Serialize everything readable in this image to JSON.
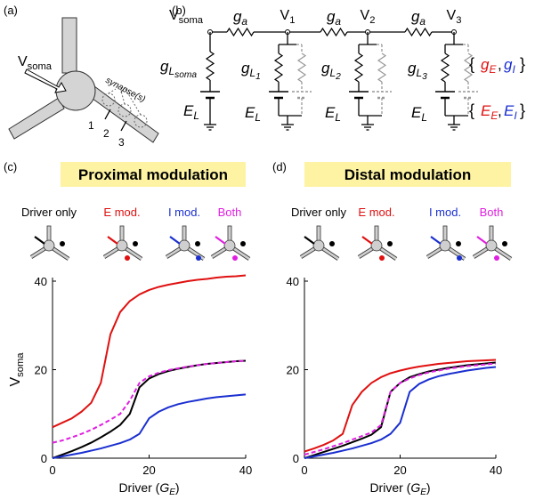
{
  "panel_labels": [
    "(a)",
    "(b)",
    "(c)",
    "(d)"
  ],
  "neuron": {
    "soma_label": {
      "main": "V",
      "sub": "soma"
    },
    "synapse_label": "synapse(s)",
    "compartments": [
      "1",
      "2",
      "3"
    ]
  },
  "circuit": {
    "soma_node": {
      "main": "V",
      "sub": "soma"
    },
    "nodes": [
      {
        "main": "V",
        "sub": "1"
      },
      {
        "main": "V",
        "sub": "2"
      },
      {
        "main": "V",
        "sub": "3"
      }
    ],
    "axial": [
      {
        "main": "g",
        "sub": "a"
      },
      {
        "main": "g",
        "sub": "a"
      },
      {
        "main": "g",
        "sub": "a"
      }
    ],
    "leaks": [
      {
        "main": "g",
        "sub": "L",
        "subsub": "soma"
      },
      {
        "main": "g",
        "sub": "L",
        "subsub": "1"
      },
      {
        "main": "g",
        "sub": "L",
        "subsub": "2"
      },
      {
        "main": "g",
        "sub": "L",
        "subsub": "3"
      }
    ],
    "reversal": [
      {
        "main": "E",
        "sub": "L"
      },
      {
        "main": "E",
        "sub": "L"
      },
      {
        "main": "E",
        "sub": "L"
      },
      {
        "main": "E",
        "sub": "L"
      }
    ],
    "syn_g": {
      "open": "{",
      "items": [
        {
          "main": "g",
          "sub": "E",
          "color": "#e01010"
        },
        {
          "main": "g",
          "sub": "I",
          "color": "#1a2fd0"
        }
      ],
      "sep": ",",
      "close": "}"
    },
    "syn_e": {
      "open": "{",
      "items": [
        {
          "main": "E",
          "sub": "E",
          "color": "#e01010"
        },
        {
          "main": "E",
          "sub": "I",
          "color": "#1a2fd0"
        }
      ],
      "sep": ",",
      "close": "}"
    }
  },
  "chart_data": [
    {
      "type": "line",
      "title": "Proximal modulation",
      "x": [
        0,
        2,
        4,
        6,
        8,
        10,
        12,
        14,
        16,
        18,
        20,
        22,
        24,
        26,
        28,
        30,
        32,
        34,
        36,
        38,
        40
      ],
      "series": [
        {
          "name": "Driver only",
          "color": "#000000",
          "values": [
            0,
            0.8,
            1.6,
            2.5,
            3.5,
            4.7,
            6,
            7.5,
            10,
            16,
            18,
            19,
            19.7,
            20.2,
            20.6,
            21,
            21.3,
            21.5,
            21.7,
            21.9,
            22
          ]
        },
        {
          "name": "E mod.",
          "color": "#e01010",
          "values": [
            7,
            8,
            9,
            10.5,
            12.5,
            17,
            28,
            33,
            35.5,
            37,
            38,
            38.7,
            39.2,
            39.6,
            40,
            40.3,
            40.5,
            40.8,
            41,
            41.1,
            41.3
          ]
        },
        {
          "name": "I mod.",
          "color": "#1a2fd0",
          "values": [
            0,
            0.4,
            0.8,
            1.2,
            1.7,
            2.2,
            2.8,
            3.4,
            4.2,
            5.5,
            9,
            10.5,
            11.5,
            12.2,
            12.7,
            13.1,
            13.5,
            13.8,
            14,
            14.2,
            14.4
          ]
        },
        {
          "name": "Both",
          "color": "#e020e0",
          "dashed": true,
          "values": [
            3.5,
            4,
            4.7,
            5.5,
            6.4,
            7.5,
            8.7,
            10,
            13,
            17,
            18.5,
            19.3,
            19.9,
            20.3,
            20.7,
            21,
            21.3,
            21.5,
            21.7,
            21.9,
            22
          ]
        }
      ],
      "xlabel": {
        "main": "Driver (",
        "sym": "G",
        "sub": "E",
        "end": ")"
      },
      "ylabel": {
        "main": "V",
        "sub": "soma"
      },
      "xlim": [
        0,
        40
      ],
      "ylim": [
        0,
        40
      ],
      "xticks": [
        0,
        20,
        40
      ],
      "yticks": [
        0,
        20,
        40
      ]
    },
    {
      "type": "line",
      "title": "Distal modulation",
      "x": [
        0,
        2,
        4,
        6,
        8,
        10,
        12,
        14,
        16,
        18,
        20,
        22,
        24,
        26,
        28,
        30,
        32,
        34,
        36,
        38,
        40
      ],
      "series": [
        {
          "name": "Driver only",
          "color": "#000000",
          "values": [
            0,
            0.7,
            1.4,
            2.1,
            2.8,
            3.6,
            4.4,
            5.3,
            7,
            15,
            17,
            18.3,
            19,
            19.6,
            20,
            20.4,
            20.7,
            21,
            21.2,
            21.4,
            21.6
          ]
        },
        {
          "name": "E mod.",
          "color": "#e01010",
          "values": [
            1.5,
            2.2,
            3,
            4,
            5.5,
            12,
            15,
            17,
            18.3,
            19.2,
            19.8,
            20.3,
            20.7,
            21,
            21.3,
            21.5,
            21.7,
            21.9,
            22,
            22.1,
            22.2
          ]
        },
        {
          "name": "I mod.",
          "color": "#1a2fd0",
          "values": [
            0,
            0.4,
            0.8,
            1.2,
            1.7,
            2.2,
            2.8,
            3.4,
            4.2,
            5.5,
            8,
            15,
            16.8,
            17.8,
            18.5,
            19,
            19.4,
            19.8,
            20.1,
            20.4,
            20.6
          ]
        },
        {
          "name": "Both",
          "color": "#e020e0",
          "dashed": true,
          "values": [
            0.8,
            1.4,
            2,
            2.7,
            3.4,
            4.2,
            5,
            5.8,
            7.5,
            15,
            17,
            18,
            18.8,
            19.4,
            19.8,
            20.2,
            20.5,
            20.8,
            21,
            21.2,
            21.4
          ]
        }
      ],
      "xlabel": {
        "main": "Driver (",
        "sym": "G",
        "sub": "E",
        "end": ")"
      },
      "xlim": [
        0,
        40
      ],
      "ylim": [
        0,
        40
      ],
      "xticks": [
        0,
        20,
        40
      ],
      "yticks": [
        0,
        20,
        40
      ]
    }
  ]
}
